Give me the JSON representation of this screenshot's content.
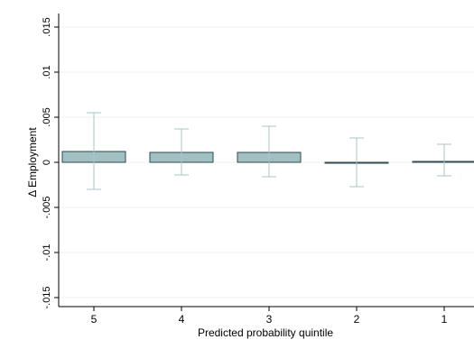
{
  "chart_data": {
    "type": "bar",
    "categories": [
      "5",
      "4",
      "3",
      "2",
      "1"
    ],
    "values": [
      0.0012,
      0.0011,
      0.0011,
      -0.0001,
      0.0001
    ],
    "error_low": [
      -0.003,
      -0.0014,
      -0.0016,
      -0.0027,
      -0.0015
    ],
    "error_high": [
      0.0055,
      0.0037,
      0.004,
      0.0027,
      0.002
    ],
    "title": "",
    "xlabel": "Predicted probability quintile",
    "ylabel": "Δ Employment",
    "ylim": [
      -0.016,
      0.016
    ],
    "yticks": [
      {
        "value": -0.015,
        "label": "-.015"
      },
      {
        "value": -0.01,
        "label": "-.01"
      },
      {
        "value": -0.005,
        "label": "-.005"
      },
      {
        "value": 0,
        "label": "0"
      },
      {
        "value": 0.005,
        "label": ".005"
      },
      {
        "value": 0.01,
        "label": ".01"
      },
      {
        "value": 0.015,
        "label": ".015"
      }
    ],
    "grid": true,
    "colors": {
      "bar_fill": "#a2c0c1",
      "bar_stroke": "#2e4a52",
      "error_bar": "#a9c4c4",
      "grid": "#eef2f4",
      "axis": "#000000"
    }
  }
}
